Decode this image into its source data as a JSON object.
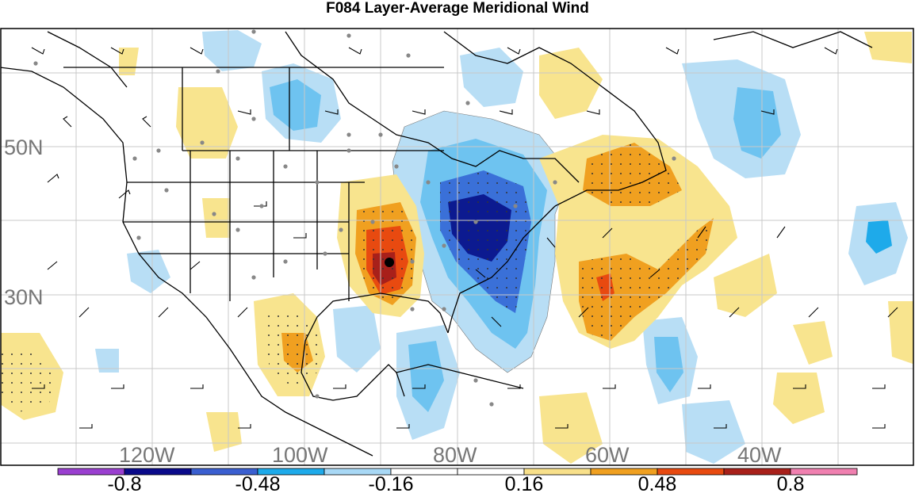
{
  "title": "F084 Layer-Average Meridional Wind",
  "lat_labels": [
    "50N",
    "30N"
  ],
  "lon_labels": [
    "120W",
    "100W",
    "80W",
    "60W",
    "40W"
  ],
  "colorbar": {
    "colors": [
      "#9a3fd0",
      "#0a0a8a",
      "#3a5fd0",
      "#1eaaea",
      "#a8d8f5",
      "#ffffff",
      "#ffffff",
      "#f8e08a",
      "#f0a020",
      "#e84a10",
      "#a8201a",
      "#f080b0"
    ],
    "labels": [
      "-0.8",
      "-0.48",
      "-0.16",
      "0.16",
      "0.48",
      "0.8"
    ]
  },
  "legend_colors": {
    "pale_blue": "#b8def5",
    "light_blue": "#6ec3f0",
    "mid_blue": "#3a70d8",
    "dark_blue": "#0c1a90",
    "pale_yellow": "#f8e48e",
    "orange": "#f0a020",
    "red_orange": "#e84a10",
    "dark_red": "#a8201a"
  }
}
